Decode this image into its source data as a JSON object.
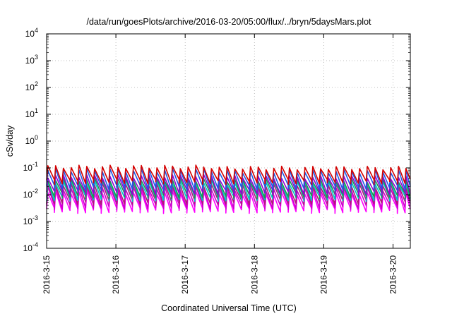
{
  "chart_data": {
    "type": "line",
    "title": "/data/run/goesPlots/archive/2016-03-20/05:00/flux/../bryn/5daysMars.plot",
    "xlabel": "Coordinated Universal Time (UTC)",
    "ylabel": "cSv/day",
    "yscale": "log",
    "ylim": [
      0.0001,
      10000
    ],
    "xlim": [
      "2016-03-15 00:00",
      "2016-03-20 06:00"
    ],
    "grid": true,
    "legend": "none",
    "y_ticks": [
      {
        "base": "10",
        "exp": "-4"
      },
      {
        "base": "10",
        "exp": "-3"
      },
      {
        "base": "10",
        "exp": "-2"
      },
      {
        "base": "10",
        "exp": "-1"
      },
      {
        "base": "10",
        "exp": "0"
      },
      {
        "base": "10",
        "exp": "1"
      },
      {
        "base": "10",
        "exp": "2"
      },
      {
        "base": "10",
        "exp": "3"
      },
      {
        "base": "10",
        "exp": "4"
      }
    ],
    "x_ticks": [
      "2016-3-15",
      "2016-3-16",
      "2016-3-17",
      "2016-3-18",
      "2016-3-19",
      "2016-3-20"
    ],
    "sawtooth_period_hours": 2.7,
    "series": [
      {
        "color": "#ff00ff",
        "peak": 0.011,
        "trough": 0.0025
      },
      {
        "color": "#cc00cc",
        "peak": 0.016,
        "trough": 0.0035
      },
      {
        "color": "#b0177a",
        "peak": 0.022,
        "trough": 0.005
      },
      {
        "color": "#00c8c8",
        "peak": 0.028,
        "trough": 0.007
      },
      {
        "color": "#1a9850",
        "peak": 0.034,
        "trough": 0.009
      },
      {
        "color": "#9400d3",
        "peak": 0.045,
        "trough": 0.012
      },
      {
        "color": "#1e5ae6",
        "peak": 0.075,
        "trough": 0.018
      },
      {
        "color": "#d40000",
        "peak": 0.1,
        "trough": 0.03
      }
    ]
  }
}
